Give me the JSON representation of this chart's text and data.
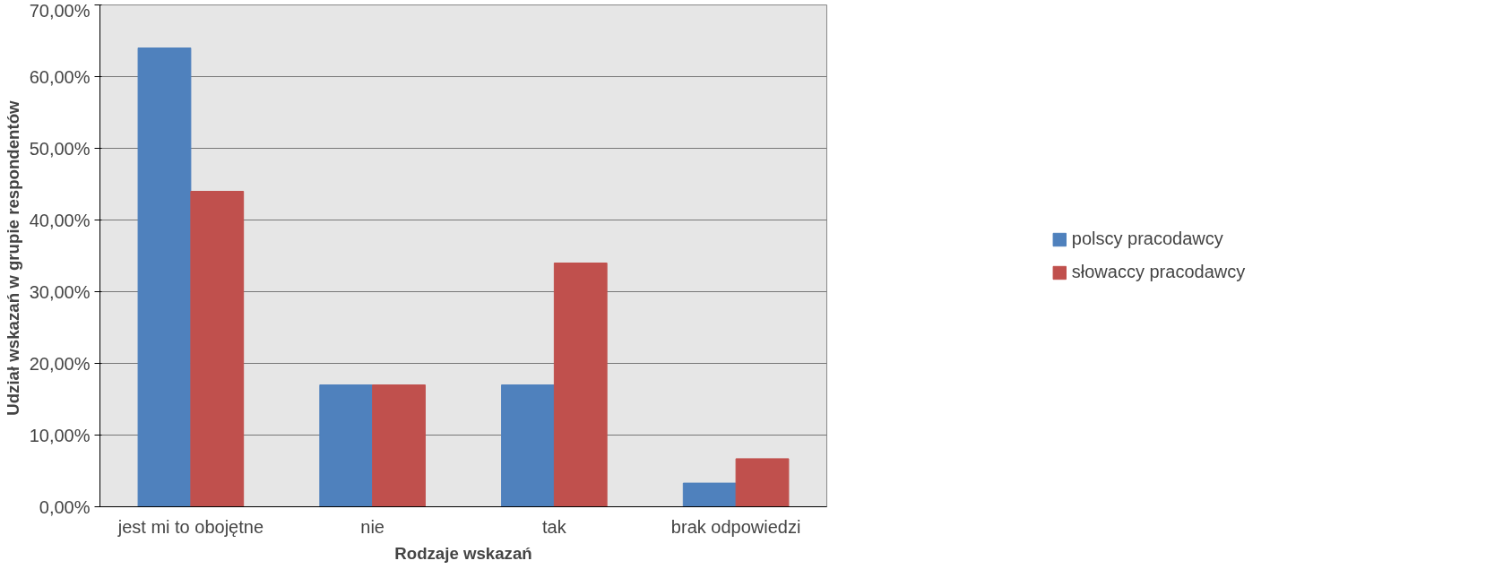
{
  "chart_data": {
    "type": "bar",
    "xlabel": "Rodzaje wskazań",
    "ylabel": "Udział wskazań  w grupie respondentów",
    "categories": [
      "jest mi to obojętne",
      "nie",
      "tak",
      "brak odpowiedzi"
    ],
    "series": [
      {
        "name": "polscy pracodawcy",
        "color": "#4f81bd",
        "values": [
          64,
          17,
          17,
          3.3
        ]
      },
      {
        "name": "słowaccy pracodawcy",
        "color": "#c0504d",
        "values": [
          44,
          17,
          34,
          6.7
        ]
      }
    ],
    "ylim": [
      0,
      70
    ],
    "yticks": [
      {
        "value": 0,
        "label": "0,00%"
      },
      {
        "value": 10,
        "label": "10,00%"
      },
      {
        "value": 20,
        "label": "20,00%"
      },
      {
        "value": 30,
        "label": "30,00%"
      },
      {
        "value": 40,
        "label": "40,00%"
      },
      {
        "value": 50,
        "label": "50,00%"
      },
      {
        "value": 60,
        "label": "60,00%"
      },
      {
        "value": 70,
        "label": "70,00%"
      }
    ],
    "grid": "y",
    "legend": "right"
  }
}
